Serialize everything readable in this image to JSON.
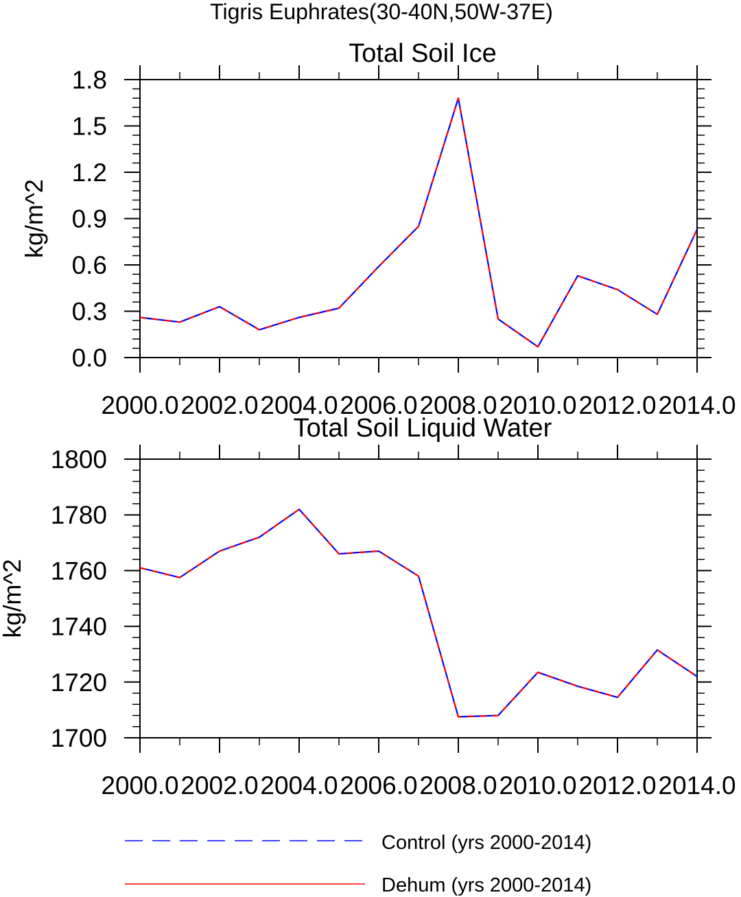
{
  "figure": {
    "title": "Tigris Euphrates(30-40N,50W-37E)"
  },
  "colors": {
    "control": "#0000ff",
    "dehum": "#ff0000",
    "axis": "#000000"
  },
  "legend": {
    "placement": "bottom",
    "items": [
      {
        "label": "Control (yrs 2000-2014)",
        "style": "dashed",
        "color": "#0000ff"
      },
      {
        "label": "Dehum (yrs 2000-2014)",
        "style": "solid",
        "color": "#ff0000"
      }
    ]
  },
  "chart_data": [
    {
      "type": "line",
      "title": "Total Soil Ice",
      "xlabel": "",
      "ylabel": "kg/m^2",
      "xlim": [
        2000,
        2014
      ],
      "ylim": [
        0,
        1.8
      ],
      "xticks": [
        2000,
        2002,
        2004,
        2006,
        2008,
        2010,
        2012,
        2014
      ],
      "xtick_labels": [
        "2000.0",
        "2002.0",
        "2004.0",
        "2006.0",
        "2008.0",
        "2010.0",
        "2012.0",
        "2014.0"
      ],
      "xminor_step": 1,
      "yticks": [
        0,
        0.3,
        0.6,
        0.9,
        1.2,
        1.5,
        1.8
      ],
      "ytick_labels": [
        "0.0",
        "0.3",
        "0.6",
        "0.9",
        "1.2",
        "1.5",
        "1.8"
      ],
      "yminor_step": 0.06,
      "x": [
        2000,
        2001,
        2002,
        2003,
        2004,
        2005,
        2006,
        2007,
        2008,
        2009,
        2010,
        2011,
        2012,
        2013,
        2014
      ],
      "series": [
        {
          "name": "Control (yrs 2000-2014)",
          "values": [
            0.26,
            0.23,
            0.33,
            0.18,
            0.26,
            0.32,
            0.59,
            0.85,
            1.68,
            0.25,
            0.07,
            0.53,
            0.44,
            0.28,
            0.83
          ]
        },
        {
          "name": "Dehum (yrs 2000-2014)",
          "values": [
            0.26,
            0.23,
            0.33,
            0.18,
            0.26,
            0.32,
            0.59,
            0.85,
            1.68,
            0.25,
            0.07,
            0.53,
            0.44,
            0.28,
            0.83
          ]
        }
      ]
    },
    {
      "type": "line",
      "title": "Total Soil Liquid Water",
      "xlabel": "",
      "ylabel": "kg/m^2",
      "xlim": [
        2000,
        2014
      ],
      "ylim": [
        1700,
        1800
      ],
      "xticks": [
        2000,
        2002,
        2004,
        2006,
        2008,
        2010,
        2012,
        2014
      ],
      "xtick_labels": [
        "2000.0",
        "2002.0",
        "2004.0",
        "2006.0",
        "2008.0",
        "2010.0",
        "2012.0",
        "2014.0"
      ],
      "xminor_step": 1,
      "yticks": [
        1700,
        1720,
        1740,
        1760,
        1780,
        1800
      ],
      "ytick_labels": [
        "1700",
        "1720",
        "1740",
        "1760",
        "1780",
        "1800"
      ],
      "yminor_step": 4,
      "x": [
        2000,
        2001,
        2002,
        2003,
        2004,
        2005,
        2006,
        2007,
        2008,
        2009,
        2010,
        2011,
        2012,
        2013,
        2014
      ],
      "series": [
        {
          "name": "Control (yrs 2000-2014)",
          "values": [
            1761,
            1757.5,
            1767,
            1772,
            1782,
            1766,
            1767,
            1758,
            1707.5,
            1708,
            1723.5,
            1718.5,
            1714.5,
            1731.5,
            1722
          ]
        },
        {
          "name": "Dehum (yrs 2000-2014)",
          "values": [
            1761,
            1757.5,
            1767,
            1772,
            1782,
            1766,
            1767,
            1758,
            1707.5,
            1708,
            1723.5,
            1718.5,
            1714.5,
            1731.5,
            1722
          ]
        }
      ]
    }
  ]
}
